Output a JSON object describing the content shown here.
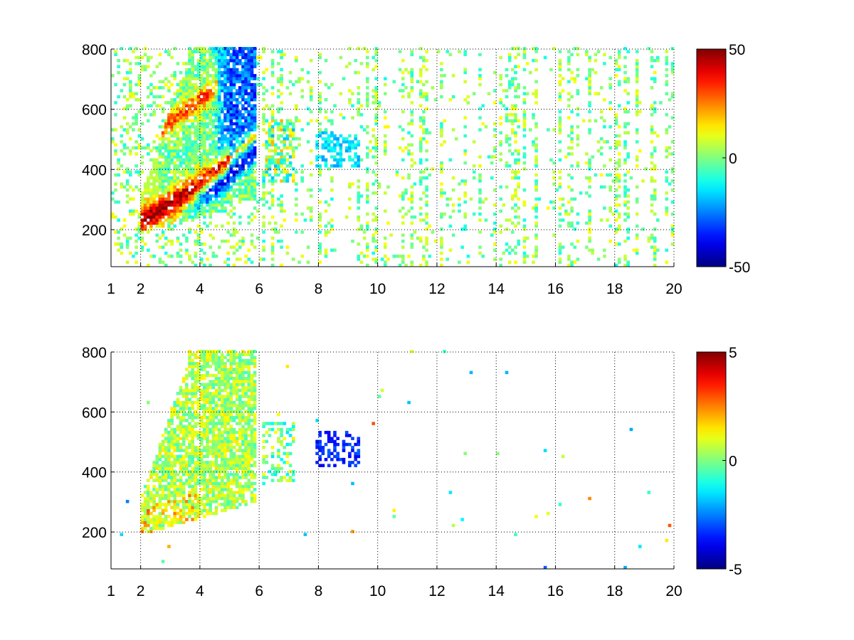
{
  "chart_data": [
    {
      "type": "heatmap",
      "title": "",
      "xlabel": "",
      "ylabel": "",
      "xlim": [
        1,
        20
      ],
      "ylim": [
        77,
        800
      ],
      "xticks": [
        1,
        2,
        4,
        6,
        8,
        10,
        12,
        14,
        16,
        18,
        20
      ],
      "xtick_labels": [
        "1",
        "2",
        "4",
        "6",
        "8",
        "10",
        "12",
        "14",
        "16",
        "18",
        "20"
      ],
      "yticks": [
        200,
        400,
        600,
        800
      ],
      "ytick_labels": [
        "200",
        "400",
        "600",
        "800"
      ],
      "grid": true,
      "colormap": "jet",
      "clim": [
        -50,
        50
      ],
      "colorbar_ticks": [
        50,
        0,
        -50
      ],
      "colorbar_labels": [
        "50",
        "0",
        "-50"
      ],
      "seed": 7
    },
    {
      "type": "heatmap",
      "title": "",
      "xlabel": "",
      "ylabel": "",
      "xlim": [
        1,
        20
      ],
      "ylim": [
        77,
        800
      ],
      "xticks": [
        1,
        2,
        4,
        6,
        8,
        10,
        12,
        14,
        16,
        18,
        20
      ],
      "xtick_labels": [
        "1",
        "2",
        "4",
        "6",
        "8",
        "10",
        "12",
        "14",
        "16",
        "18",
        "20"
      ],
      "yticks": [
        200,
        400,
        600,
        800
      ],
      "ytick_labels": [
        "200",
        "400",
        "600",
        "800"
      ],
      "grid": true,
      "colormap": "jet",
      "clim": [
        -5,
        5
      ],
      "colorbar_ticks": [
        5,
        0,
        -5
      ],
      "colorbar_labels": [
        "5",
        "0",
        "-5"
      ],
      "seed": 11
    }
  ]
}
